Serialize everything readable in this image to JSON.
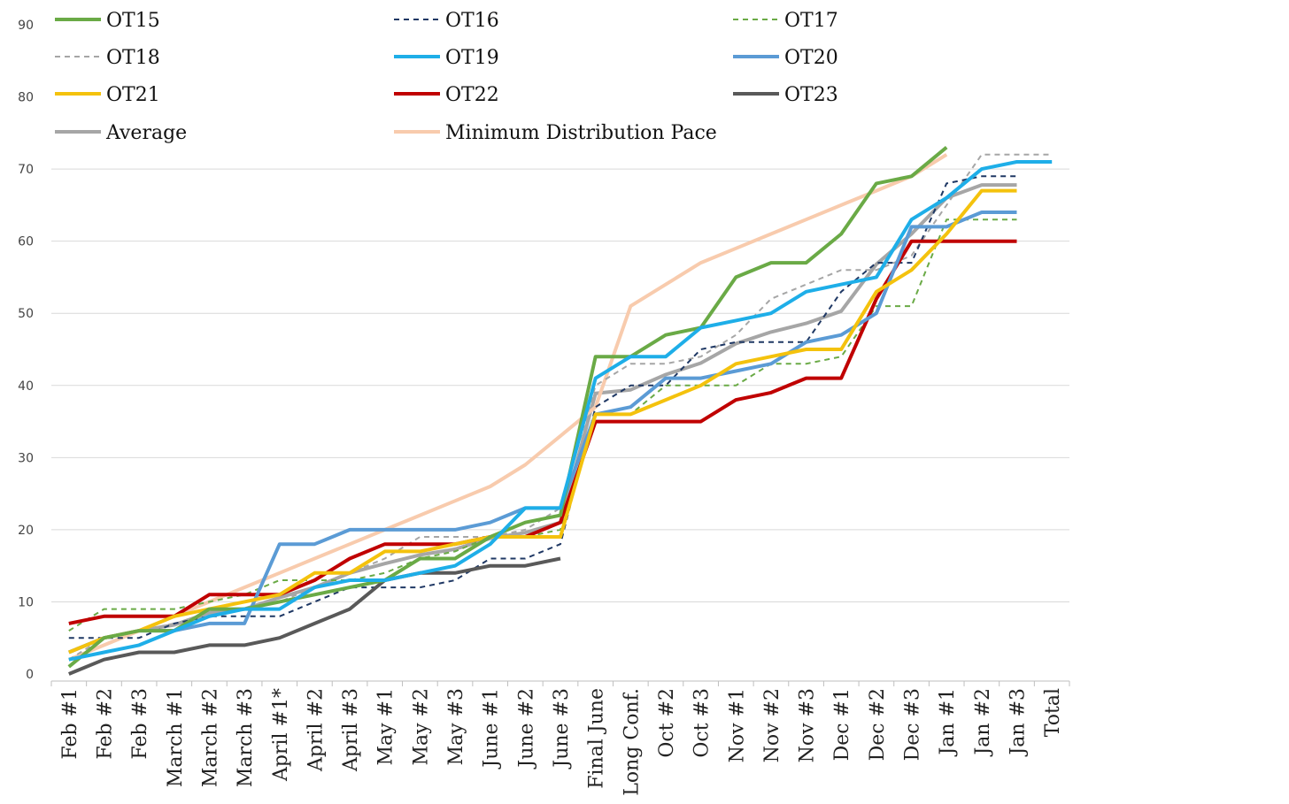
{
  "chart_data": {
    "type": "line",
    "title": "",
    "xlabel": "",
    "ylabel": "",
    "ylim": [
      0,
      90
    ],
    "yticks": [
      0,
      10,
      20,
      30,
      40,
      50,
      60,
      70,
      80,
      90
    ],
    "grid": true,
    "legend_position": "top",
    "categories": [
      "Feb #1",
      "Feb #2",
      "Feb #3",
      "March #1",
      "March #2",
      "March #3",
      "April #1*",
      "April #2",
      "April #3",
      "May #1",
      "May #2",
      "May #3",
      "June #1",
      "June #2",
      "June #3",
      "Final June",
      "Long Conf.",
      "Oct #2",
      "Oct #3",
      "Nov #1",
      "Nov #2",
      "Nov #3",
      "Dec #1",
      "Dec #2",
      "Dec #3",
      "Jan #1",
      "Jan #2",
      "Jan #3",
      "Total"
    ],
    "series": [
      {
        "name": "OT15",
        "color": "#6aaa46",
        "style": "solid",
        "width": 4,
        "values": [
          1,
          5,
          6,
          6,
          9,
          9,
          10,
          11,
          12,
          13,
          16,
          16,
          19,
          21,
          22,
          44,
          44,
          47,
          48,
          55,
          57,
          57,
          61,
          68,
          69,
          73,
          null,
          null,
          null
        ]
      },
      {
        "name": "OT16",
        "color": "#1f3864",
        "style": "dashed",
        "width": 2,
        "values": [
          5,
          5,
          5,
          7,
          8,
          8,
          8,
          10,
          12,
          12,
          12,
          13,
          16,
          16,
          18,
          37,
          40,
          40,
          45,
          46,
          46,
          46,
          53,
          57,
          57,
          68,
          69,
          69,
          null
        ]
      },
      {
        "name": "OT17",
        "color": "#6aaa46",
        "style": "dashed",
        "width": 2,
        "values": [
          6,
          9,
          9,
          9,
          10,
          11,
          13,
          13,
          13,
          14,
          16,
          17,
          19,
          19,
          20,
          36,
          36,
          40,
          40,
          40,
          43,
          43,
          44,
          51,
          51,
          63,
          63,
          63,
          null
        ]
      },
      {
        "name": "OT18",
        "color": "#a6a6a6",
        "style": "dashed",
        "width": 2,
        "values": [
          2,
          5,
          6,
          7,
          8,
          9,
          10,
          12,
          14,
          16,
          19,
          19,
          19,
          20,
          23,
          40,
          43,
          43,
          44,
          47,
          52,
          54,
          56,
          56,
          58,
          65,
          72,
          72,
          72
        ]
      },
      {
        "name": "OT19",
        "color": "#1eaee8",
        "style": "solid",
        "width": 4,
        "values": [
          2,
          3,
          4,
          6,
          8,
          9,
          9,
          12,
          13,
          13,
          14,
          15,
          18,
          23,
          23,
          41,
          44,
          44,
          48,
          49,
          50,
          53,
          54,
          55,
          63,
          66,
          70,
          71,
          71
        ]
      },
      {
        "name": "OT20",
        "color": "#5b9bd5",
        "style": "solid",
        "width": 4,
        "values": [
          3,
          5,
          6,
          6,
          7,
          7,
          18,
          18,
          20,
          20,
          20,
          20,
          21,
          23,
          23,
          36,
          37,
          41,
          41,
          42,
          43,
          46,
          47,
          50,
          62,
          62,
          64,
          64,
          null
        ]
      },
      {
        "name": "OT21",
        "color": "#f4c20d",
        "style": "solid",
        "width": 4,
        "values": [
          3,
          5,
          6,
          8,
          9,
          10,
          11,
          14,
          14,
          17,
          17,
          18,
          19,
          19,
          19,
          36,
          36,
          38,
          40,
          43,
          44,
          45,
          45,
          53,
          56,
          61,
          67,
          67,
          null
        ]
      },
      {
        "name": "OT22",
        "color": "#c00000",
        "style": "solid",
        "width": 4,
        "values": [
          7,
          8,
          8,
          8,
          11,
          11,
          11,
          13,
          16,
          18,
          18,
          18,
          19,
          19,
          21,
          35,
          35,
          35,
          35,
          38,
          39,
          41,
          41,
          52,
          60,
          60,
          60,
          60,
          null
        ]
      },
      {
        "name": "OT23",
        "color": "#595959",
        "style": "solid",
        "width": 4,
        "values": [
          0,
          2,
          3,
          3,
          4,
          4,
          5,
          7,
          9,
          13,
          14,
          14,
          15,
          15,
          16,
          null,
          null,
          null,
          null,
          null,
          null,
          null,
          null,
          null,
          null,
          null,
          null,
          null,
          null
        ]
      },
      {
        "name": "Average",
        "color": "#a6a6a6",
        "style": "solid",
        "width": 4,
        "values": [
          3,
          5,
          6,
          6.8,
          8.5,
          9,
          10.6,
          12,
          14,
          15.3,
          16.5,
          17.3,
          18.8,
          19.6,
          21,
          38.9,
          39.4,
          41.5,
          43.1,
          45.8,
          47.4,
          48.6,
          50.3,
          56.8,
          61,
          66,
          67.8,
          67.8,
          null
        ]
      },
      {
        "name": "Minimum Distribution Pace",
        "color": "#f8cbad",
        "style": "solid",
        "width": 4,
        "values": [
          2,
          4,
          6,
          8,
          10,
          12,
          14,
          16,
          18,
          20,
          22,
          24,
          26,
          29,
          33,
          37,
          51,
          54,
          57,
          59,
          61,
          63,
          65,
          67,
          69,
          72,
          null,
          null,
          null
        ]
      }
    ]
  }
}
